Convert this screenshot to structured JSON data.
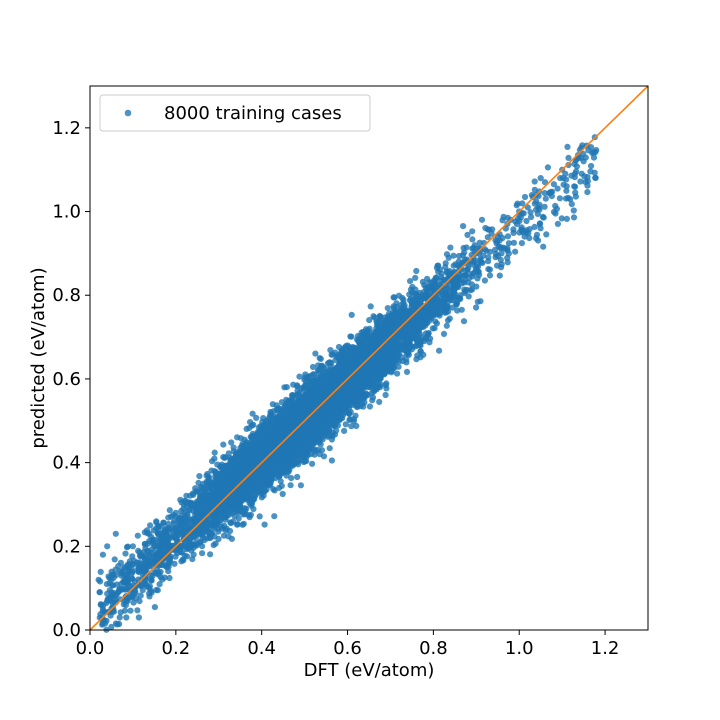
{
  "chart_data": {
    "type": "scatter",
    "xlabel": "DFT (eV/atom)",
    "ylabel": "predicted (eV/atom)",
    "xlim": [
      0.0,
      1.3
    ],
    "ylim": [
      0.0,
      1.3
    ],
    "xticks": [
      "0.0",
      "0.2",
      "0.4",
      "0.6",
      "0.8",
      "1.0",
      "1.2"
    ],
    "yticks": [
      "0.0",
      "0.2",
      "0.4",
      "0.6",
      "0.8",
      "1.0",
      "1.2"
    ],
    "grid": false,
    "legend_position": "top-left",
    "series": [
      {
        "name": "8000 training cases",
        "color": "#1f77b4",
        "point_count": 8000,
        "x": [
          0.02,
          0.03,
          0.04,
          0.05,
          0.06,
          0.08,
          0.1,
          0.12,
          0.14,
          0.16,
          0.18,
          0.2,
          0.22,
          0.24,
          0.26,
          0.28,
          0.3,
          0.32,
          0.34,
          0.36,
          0.38,
          0.4,
          0.42,
          0.44,
          0.46,
          0.48,
          0.5,
          0.52,
          0.54,
          0.56,
          0.58,
          0.6,
          0.62,
          0.64,
          0.66,
          0.68,
          0.7,
          0.72,
          0.74,
          0.76,
          0.78,
          0.8,
          0.82,
          0.84,
          0.86,
          0.88,
          0.9,
          0.92,
          0.95,
          0.98,
          1.0,
          1.02,
          1.04,
          1.05,
          1.06,
          1.1,
          1.15,
          1.17
        ],
        "y": [
          0.12,
          0.18,
          0.2,
          0.09,
          0.23,
          0.15,
          0.2,
          0.12,
          0.25,
          0.22,
          0.2,
          0.28,
          0.24,
          0.3,
          0.26,
          0.34,
          0.32,
          0.35,
          0.38,
          0.36,
          0.42,
          0.4,
          0.44,
          0.45,
          0.47,
          0.49,
          0.51,
          0.52,
          0.55,
          0.56,
          0.58,
          0.6,
          0.61,
          0.64,
          0.65,
          0.67,
          0.7,
          0.71,
          0.73,
          0.76,
          0.77,
          0.8,
          0.82,
          0.84,
          0.86,
          0.88,
          0.9,
          0.91,
          0.94,
          0.98,
          1.0,
          1.01,
          1.04,
          1.08,
          1.07,
          1.1,
          1.12,
          1.14
        ]
      }
    ],
    "reference_line": {
      "x": [
        0.0,
        1.3
      ],
      "y": [
        0.0,
        1.3
      ],
      "color": "#ff7f0e"
    }
  }
}
